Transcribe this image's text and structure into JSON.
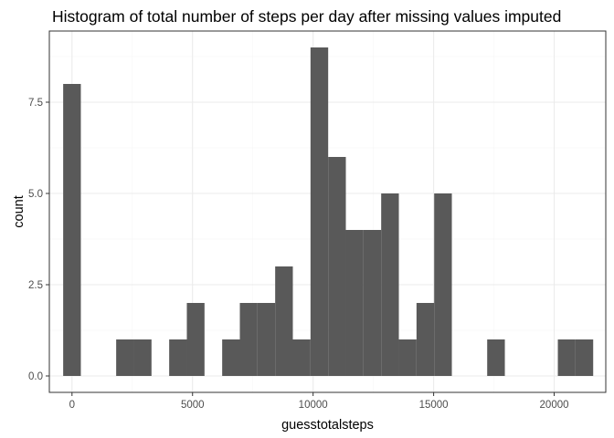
{
  "chart_data": {
    "type": "bar",
    "title": "Histogram of total number of steps per day after missing values imputed",
    "xlabel": "guesstotalsteps",
    "ylabel": "count",
    "xlim": [
      -940,
      22140
    ],
    "ylim": [
      -0.45,
      9.45
    ],
    "x_ticks": [
      0,
      5000,
      10000,
      15000,
      20000
    ],
    "x_tick_labels": [
      "0",
      "5000",
      "10000",
      "15000",
      "20000"
    ],
    "y_ticks": [
      0,
      2.5,
      5,
      7.5
    ],
    "y_tick_labels": [
      "0.0",
      "2.5",
      "5.0",
      "7.5"
    ],
    "bin_width": 732.8,
    "bins": [
      {
        "from": -366.4,
        "to": 366.4,
        "count": 8
      },
      {
        "from": 366.4,
        "to": 1099.2,
        "count": 0
      },
      {
        "from": 1099.2,
        "to": 1832.0,
        "count": 0
      },
      {
        "from": 1832.0,
        "to": 2564.8,
        "count": 1
      },
      {
        "from": 2564.8,
        "to": 3297.6,
        "count": 1
      },
      {
        "from": 3297.6,
        "to": 4030.4,
        "count": 0
      },
      {
        "from": 4030.4,
        "to": 4763.2,
        "count": 1
      },
      {
        "from": 4763.2,
        "to": 5496.0,
        "count": 2
      },
      {
        "from": 5496.0,
        "to": 6228.8,
        "count": 0
      },
      {
        "from": 6228.8,
        "to": 6961.6,
        "count": 1
      },
      {
        "from": 6961.6,
        "to": 7694.4,
        "count": 2
      },
      {
        "from": 7694.4,
        "to": 8427.2,
        "count": 2
      },
      {
        "from": 8427.2,
        "to": 9160.0,
        "count": 3
      },
      {
        "from": 9160.0,
        "to": 9892.8,
        "count": 1
      },
      {
        "from": 9892.8,
        "to": 10625.6,
        "count": 9
      },
      {
        "from": 10625.6,
        "to": 11358.4,
        "count": 6
      },
      {
        "from": 11358.4,
        "to": 12091.2,
        "count": 4
      },
      {
        "from": 12091.2,
        "to": 12824.0,
        "count": 4
      },
      {
        "from": 12824.0,
        "to": 13556.8,
        "count": 5
      },
      {
        "from": 13556.8,
        "to": 14289.6,
        "count": 1
      },
      {
        "from": 14289.6,
        "to": 15022.4,
        "count": 2
      },
      {
        "from": 15022.4,
        "to": 15755.2,
        "count": 5
      },
      {
        "from": 15755.2,
        "to": 16488.0,
        "count": 0
      },
      {
        "from": 16488.0,
        "to": 17220.8,
        "count": 0
      },
      {
        "from": 17220.8,
        "to": 17953.6,
        "count": 1
      },
      {
        "from": 17953.6,
        "to": 18686.4,
        "count": 0
      },
      {
        "from": 18686.4,
        "to": 19419.2,
        "count": 0
      },
      {
        "from": 19419.2,
        "to": 20152.0,
        "count": 0
      },
      {
        "from": 20152.0,
        "to": 20884.8,
        "count": 1
      },
      {
        "from": 20884.8,
        "to": 21617.6,
        "count": 1
      }
    ],
    "grid": true,
    "colors": {
      "bar_fill": "#595959",
      "grid_major": "#ebebeb",
      "grid_minor": "#f5f5f5",
      "panel_border": "#333333",
      "tick_label": "#4d4d4d"
    }
  }
}
